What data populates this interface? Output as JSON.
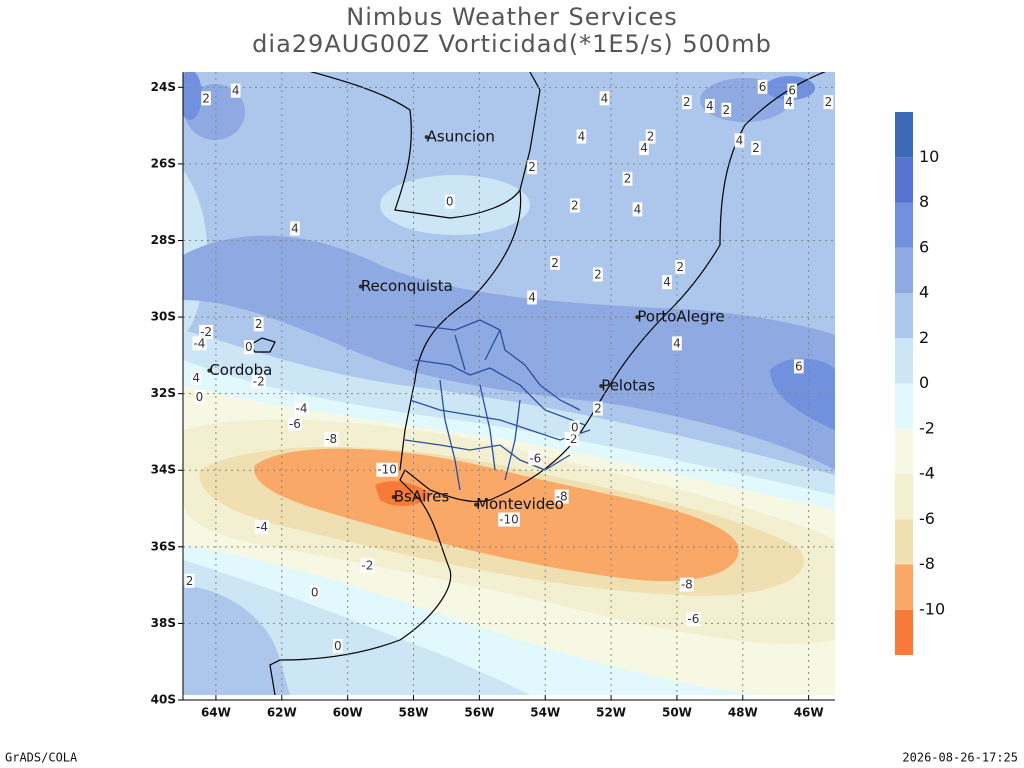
{
  "chart_data": {
    "type": "filled-contour-map",
    "title": "Nimbus Weather Services",
    "subtitle": "dia29AUG00Z Vorticidad(*1E5/s) 500mb",
    "xlim": [
      -65,
      -45.2
    ],
    "ylim": [
      -40,
      -23.6
    ],
    "xticks": [
      {
        "value": -64,
        "label": "64W"
      },
      {
        "value": -62,
        "label": "62W"
      },
      {
        "value": -60,
        "label": "60W"
      },
      {
        "value": -58,
        "label": "58W"
      },
      {
        "value": -56,
        "label": "56W"
      },
      {
        "value": -54,
        "label": "54W"
      },
      {
        "value": -52,
        "label": "52W"
      },
      {
        "value": -50,
        "label": "50W"
      },
      {
        "value": -48,
        "label": "48W"
      },
      {
        "value": -46,
        "label": "46W"
      }
    ],
    "yticks": [
      {
        "value": -24,
        "label": "24S"
      },
      {
        "value": -26,
        "label": "26S"
      },
      {
        "value": -28,
        "label": "28S"
      },
      {
        "value": -30,
        "label": "30S"
      },
      {
        "value": -32,
        "label": "32S"
      },
      {
        "value": -34,
        "label": "34S"
      },
      {
        "value": -36,
        "label": "36S"
      },
      {
        "value": -38,
        "label": "38S"
      },
      {
        "value": -40,
        "label": "40S"
      }
    ],
    "grid": true,
    "colorbar": {
      "levels": [
        -10,
        -8,
        -6,
        -4,
        -2,
        0,
        2,
        4,
        6,
        8,
        10
      ],
      "colors": [
        "#f87a38",
        "#f9a868",
        "#f0dfb0",
        "#f3f0d2",
        "#f6f8e4",
        "#e1f9fc",
        "#cde6f6",
        "#adc7ec",
        "#8fa9e2",
        "#7190dd",
        "#5872cf",
        "#3d6ab6"
      ]
    },
    "cities": [
      {
        "name": "Asuncion",
        "lon": -57.6,
        "lat": -25.3
      },
      {
        "name": "Reconquista",
        "lon": -59.6,
        "lat": -29.2
      },
      {
        "name": "PortoAlegre",
        "lon": -51.2,
        "lat": -30.0
      },
      {
        "name": "Pelotas",
        "lon": -52.3,
        "lat": -31.8
      },
      {
        "name": "Cordoba",
        "lon": -64.2,
        "lat": -31.4
      },
      {
        "name": "BsAires",
        "lon": -58.6,
        "lat": -34.7
      },
      {
        "name": "Montevideo",
        "lon": -56.1,
        "lat": -34.9
      }
    ],
    "contour_labels": [
      {
        "lon": -63.4,
        "lat": -24.1,
        "value": 4
      },
      {
        "lon": -64.3,
        "lat": -24.3,
        "value": 2
      },
      {
        "lon": -52.2,
        "lat": -24.3,
        "value": 4
      },
      {
        "lon": -49.7,
        "lat": -24.4,
        "value": 2
      },
      {
        "lon": -49.0,
        "lat": -24.5,
        "value": 4
      },
      {
        "lon": -48.5,
        "lat": -24.6,
        "value": 2
      },
      {
        "lon": -47.4,
        "lat": -24.0,
        "value": 6
      },
      {
        "lon": -46.5,
        "lat": -24.1,
        "value": 6
      },
      {
        "lon": -46.6,
        "lat": -24.4,
        "value": 4
      },
      {
        "lon": -45.4,
        "lat": -24.4,
        "value": 2
      },
      {
        "lon": -52.9,
        "lat": -25.3,
        "value": 4
      },
      {
        "lon": -50.8,
        "lat": -25.3,
        "value": 2
      },
      {
        "lon": -51.0,
        "lat": -25.6,
        "value": 4
      },
      {
        "lon": -48.1,
        "lat": -25.4,
        "value": 4
      },
      {
        "lon": -47.6,
        "lat": -25.6,
        "value": 2
      },
      {
        "lon": -54.4,
        "lat": -26.1,
        "value": 2
      },
      {
        "lon": -51.5,
        "lat": -26.4,
        "value": 2
      },
      {
        "lon": -51.2,
        "lat": -27.2,
        "value": 4
      },
      {
        "lon": -53.1,
        "lat": -27.1,
        "value": 2
      },
      {
        "lon": -56.9,
        "lat": -27.0,
        "value": 0
      },
      {
        "lon": -61.6,
        "lat": -27.7,
        "value": 4
      },
      {
        "lon": -53.7,
        "lat": -28.6,
        "value": 2
      },
      {
        "lon": -52.4,
        "lat": -28.9,
        "value": 2
      },
      {
        "lon": -49.9,
        "lat": -28.7,
        "value": 2
      },
      {
        "lon": -50.3,
        "lat": -29.1,
        "value": 4
      },
      {
        "lon": -54.4,
        "lat": -29.5,
        "value": 4
      },
      {
        "lon": -62.7,
        "lat": -30.2,
        "value": 2
      },
      {
        "lon": -50.0,
        "lat": -30.7,
        "value": 4
      },
      {
        "lon": -46.3,
        "lat": -31.3,
        "value": 6
      },
      {
        "lon": -64.3,
        "lat": -30.4,
        "value": -2
      },
      {
        "lon": -64.5,
        "lat": -30.7,
        "value": -4
      },
      {
        "lon": -63.0,
        "lat": -30.8,
        "value": 0
      },
      {
        "lon": -62.7,
        "lat": -31.7,
        "value": -2
      },
      {
        "lon": -64.6,
        "lat": -31.6,
        "value": 4
      },
      {
        "lon": -64.5,
        "lat": -32.1,
        "value": 0
      },
      {
        "lon": -61.4,
        "lat": -32.4,
        "value": -4
      },
      {
        "lon": -61.6,
        "lat": -32.8,
        "value": -6
      },
      {
        "lon": -60.5,
        "lat": -33.2,
        "value": -8
      },
      {
        "lon": -58.8,
        "lat": -34.0,
        "value": -10
      },
      {
        "lon": -54.3,
        "lat": -33.7,
        "value": -6
      },
      {
        "lon": -53.2,
        "lat": -33.2,
        "value": -2
      },
      {
        "lon": -53.1,
        "lat": -32.9,
        "value": 0
      },
      {
        "lon": -52.4,
        "lat": -32.4,
        "value": 2
      },
      {
        "lon": -53.5,
        "lat": -34.7,
        "value": -8
      },
      {
        "lon": -55.1,
        "lat": -35.3,
        "value": -10
      },
      {
        "lon": -62.6,
        "lat": -35.5,
        "value": -4
      },
      {
        "lon": -59.4,
        "lat": -36.5,
        "value": -2
      },
      {
        "lon": -64.8,
        "lat": -36.9,
        "value": 2
      },
      {
        "lon": -61.0,
        "lat": -37.2,
        "value": 0
      },
      {
        "lon": -49.7,
        "lat": -37.0,
        "value": -8
      },
      {
        "lon": -49.5,
        "lat": -37.9,
        "value": -6
      },
      {
        "lon": -60.3,
        "lat": -38.6,
        "value": 0
      }
    ]
  },
  "footer": {
    "left": "GrADS/COLA",
    "right": "2026-08-26-17:25"
  }
}
